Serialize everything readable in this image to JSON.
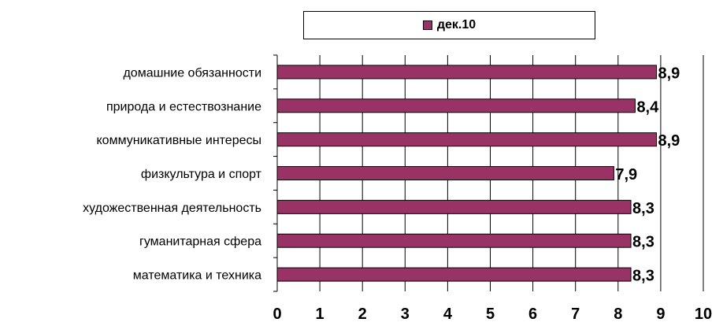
{
  "chart_data": {
    "type": "bar",
    "orientation": "horizontal",
    "categories": [
      "домашние обязанности",
      "природа и естествознание",
      "коммуникативные интересы",
      "физкультура и спорт",
      "художественная деятельность",
      "гуманитарная сфера",
      "математика и техника"
    ],
    "series": [
      {
        "name": "дек.10",
        "values": [
          8.9,
          8.4,
          8.9,
          7.9,
          8.3,
          8.3,
          8.3
        ],
        "color": "#993366"
      }
    ],
    "data_labels": [
      "8,9",
      "8,4",
      "8,9",
      "7,9",
      "8,3",
      "8,3",
      "8,3"
    ],
    "xlim": [
      0,
      10
    ],
    "x_ticks": [
      "0",
      "1",
      "2",
      "3",
      "4",
      "5",
      "6",
      "7",
      "8",
      "9",
      "10"
    ],
    "grid": true,
    "legend_position": "top"
  }
}
